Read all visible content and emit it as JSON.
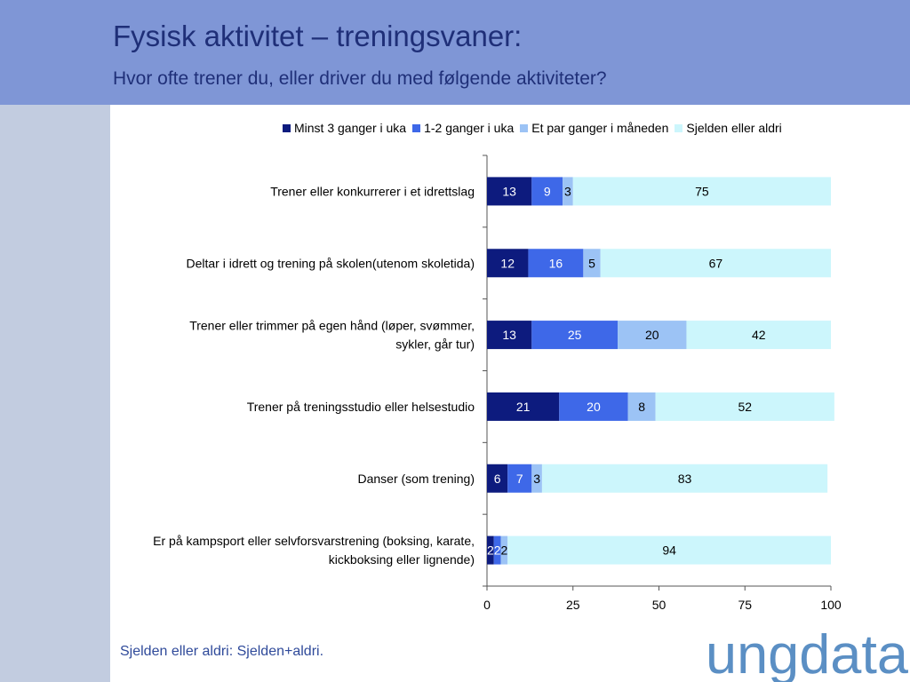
{
  "header": {
    "title": "Fysisk aktivitet – treningsvaner:",
    "subtitle": "Hvor ofte trener du, eller driver du med følgende aktiviteter?"
  },
  "footnote": "Sjelden eller aldri: Sjelden+aldri.",
  "logo": {
    "text": "ungdata"
  },
  "colors": {
    "header_bg": "#7f96d6",
    "sidebar_bg": "#c2cce0",
    "title_text": "#1f2f78",
    "footnote_text": "#2f4a9a",
    "logo": "#5b8fc4"
  },
  "chart_data": {
    "type": "bar",
    "orientation": "horizontal",
    "stacked": true,
    "categories": [
      "Trener eller konkurrerer i et idrettslag",
      "Deltar i idrett og trening på skolen(utenom skoletida)",
      "Trener eller trimmer på egen hånd (løper, svømmer, sykler, går tur)",
      "Trener på treningsstudio eller helsestudio",
      "Danser (som trening)",
      "Er på kampsport eller selvforsvarstrening (boksing, karate, kickboksing eller lignende)"
    ],
    "category_lines": [
      [
        "Trener eller konkurrerer i et idrettslag"
      ],
      [
        "Deltar i idrett og trening på skolen(utenom skoletida)"
      ],
      [
        "Trener eller trimmer på egen hånd (løper, svømmer,",
        "sykler, går tur)"
      ],
      [
        "Trener på treningsstudio eller helsestudio"
      ],
      [
        "Danser (som trening)"
      ],
      [
        "Er på kampsport eller selvforsvarstrening (boksing, karate,",
        "kickboksing eller lignende)"
      ]
    ],
    "series": [
      {
        "name": "Minst 3 ganger i uka",
        "color": "#0d1b7e",
        "label_color": "#ffffff",
        "values": [
          13,
          12,
          13,
          21,
          6,
          2
        ]
      },
      {
        "name": "1-2 ganger i uka",
        "color": "#3e68e8",
        "label_color": "#ffffff",
        "values": [
          9,
          16,
          25,
          20,
          7,
          2
        ]
      },
      {
        "name": "Et par ganger i måneden",
        "color": "#9cc3f5",
        "label_color": "#000000",
        "values": [
          3,
          5,
          20,
          8,
          3,
          2
        ]
      },
      {
        "name": "Sjelden eller aldri",
        "color": "#ccf6fc",
        "label_color": "#000000",
        "values": [
          75,
          67,
          42,
          52,
          83,
          94
        ]
      }
    ],
    "xlim": [
      0,
      100
    ],
    "xticks": [
      0,
      25,
      50,
      75,
      100
    ],
    "legend_position": "top",
    "grid": false
  }
}
